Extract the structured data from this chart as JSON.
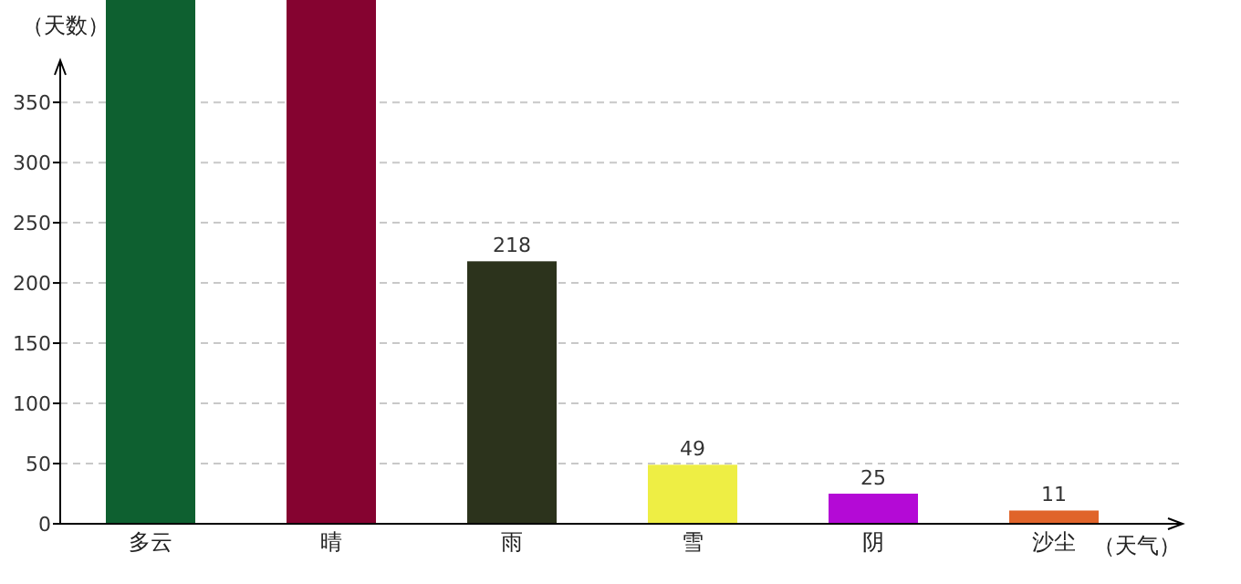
{
  "chart_data": {
    "type": "bar",
    "xlabel": "（天气）",
    "ylabel": "（天数）",
    "categories": [
      "多云",
      "晴",
      "雨",
      "雪",
      "阴",
      "沙尘"
    ],
    "values": [
      435,
      435,
      218,
      49,
      25,
      11
    ],
    "colors": [
      "#0e6030",
      "#850330",
      "#2c331c",
      "#eeee44",
      "#b40ad6",
      "#e0642a"
    ],
    "value_labels": [
      null,
      null,
      "218",
      "49",
      "25",
      "11"
    ],
    "ylim": [
      0,
      435
    ],
    "yticks": [
      0,
      50,
      100,
      150,
      200,
      250,
      300,
      350
    ],
    "grid": "y"
  }
}
